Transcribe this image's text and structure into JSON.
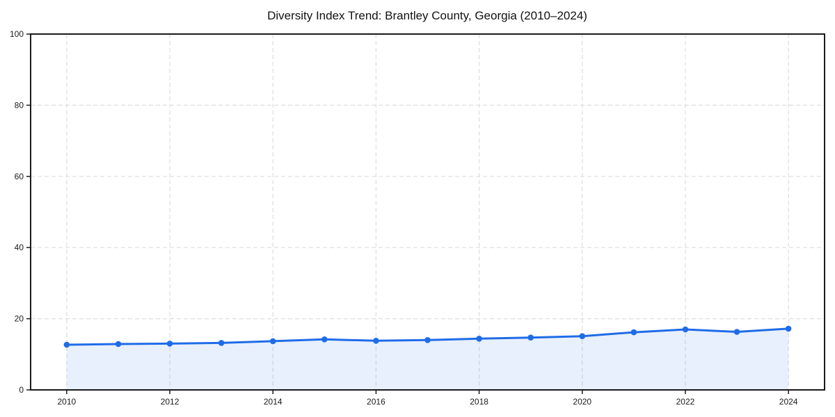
{
  "chart_data": {
    "type": "area",
    "title": "Diversity Index Trend: Brantley County, Georgia (2010–2024)",
    "x": [
      2010,
      2011,
      2012,
      2013,
      2014,
      2015,
      2016,
      2017,
      2018,
      2019,
      2020,
      2021,
      2022,
      2023,
      2024
    ],
    "values": [
      12.7,
      12.9,
      13.0,
      13.2,
      13.7,
      14.2,
      13.8,
      14.0,
      14.4,
      14.7,
      15.1,
      16.2,
      17.0,
      16.3,
      17.2
    ],
    "xlabel": "",
    "ylabel": "",
    "ylim": [
      0,
      100
    ],
    "yticks": [
      0,
      20,
      40,
      60,
      80,
      100
    ],
    "xticks": [
      2010,
      2012,
      2014,
      2016,
      2018,
      2020,
      2022,
      2024
    ],
    "grid": true,
    "legend_position": "none",
    "colors": {
      "line": "#1f6ce8",
      "marker": "#1f6ce8",
      "area_fill": "#1f6ce8",
      "area_opacity": 0.1,
      "gridline": "#dedede",
      "axis": "#1a1a1a",
      "tick_label": "#1a1a1a",
      "title": "#111111",
      "background": "#ffffff"
    }
  }
}
